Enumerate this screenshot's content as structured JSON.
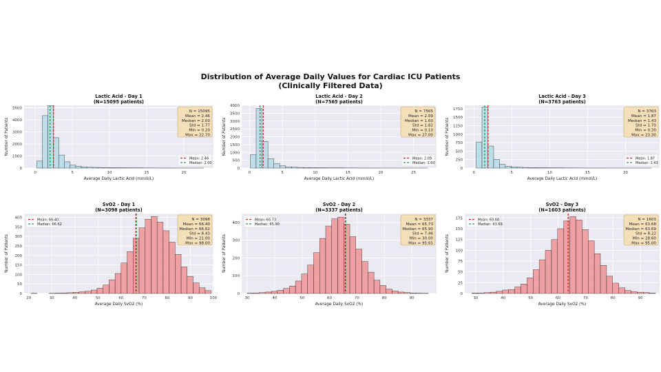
{
  "figure": {
    "title_line1": "Distribution of Average Daily Values for Cardiac ICU Patients",
    "title_line2": "(Clinically Filtered Data)"
  },
  "colors": {
    "plot_bg": "#eaeaf2",
    "grid": "#ffffff",
    "lactate_bar": "#add8e6",
    "svo2_bar": "#f08080",
    "bar_edge": "#222222",
    "mean_line": "#e0201b",
    "median_line": "#2e8b57",
    "stats_box": "#f5deb3",
    "stats_edge": "#c8a96e"
  },
  "chart_data": [
    {
      "type": "bar",
      "title": "Lactic Acid - Day 1",
      "subtitle": "(N=15095 patients)",
      "xlabel": "Average Daily Lactic Acid (mmol/L)",
      "ylabel": "Number of Patients",
      "xlim": [
        -1.5,
        24
      ],
      "ylim": [
        0,
        5200
      ],
      "xticks": [
        0,
        5,
        10,
        15,
        20
      ],
      "yticks": [
        0,
        1000,
        2000,
        3000,
        4000,
        5000
      ],
      "bin_start": 0.2,
      "bin_width": 0.75,
      "counts": [
        580,
        4350,
        5180,
        2520,
        1080,
        520,
        260,
        150,
        100,
        75,
        60,
        50,
        40,
        32,
        26,
        22,
        18,
        14,
        12,
        10,
        9,
        8,
        7,
        6,
        5,
        4,
        4,
        3,
        3,
        2
      ],
      "mean": 2.46,
      "median": 2.0,
      "legend_loc": "lower-right",
      "legend": [
        "Mean: 2.46",
        "Median: 2.00"
      ],
      "stats": [
        "N = 15095",
        "Mean = 2.46",
        "Median = 2.00",
        "Std = 1.77",
        "Min = 0.20",
        "Max = 22.70"
      ]
    },
    {
      "type": "bar",
      "title": "Lactic Acid - Day 2",
      "subtitle": "(N=7565 patients)",
      "xlabel": "Average Daily Lactic Acid (mmol/L)",
      "ylabel": "Number of Patients",
      "xlim": [
        -1.2,
        28.5
      ],
      "ylim": [
        0,
        4000
      ],
      "xticks": [
        0,
        5,
        10,
        15,
        20,
        25
      ],
      "yticks": [
        0,
        500,
        1000,
        1500,
        2000,
        2500,
        3000,
        3500,
        4000
      ],
      "bin_start": 0.1,
      "bin_width": 0.9,
      "counts": [
        850,
        3800,
        1700,
        600,
        280,
        140,
        80,
        55,
        40,
        32,
        25,
        20,
        16,
        13,
        11,
        9,
        8,
        7,
        6,
        5,
        4,
        4,
        3,
        3,
        2,
        2,
        2,
        1,
        1,
        1
      ],
      "mean": 2.09,
      "median": 1.6,
      "legend_loc": "lower-right",
      "legend": [
        "Mean: 2.09",
        "Median: 1.60"
      ],
      "stats": [
        "N = 7565",
        "Mean = 2.09",
        "Median = 1.60",
        "Std = 1.82",
        "Min = 0.10",
        "Max = 27.00"
      ]
    },
    {
      "type": "bar",
      "title": "Lactic Acid - Day 3",
      "subtitle": "(N=3763 patients)",
      "xlabel": "Average Daily Lactic Acid (mmol/L)",
      "ylabel": "Number of Patients",
      "xlim": [
        -1.2,
        24.5
      ],
      "ylim": [
        0,
        1850
      ],
      "xticks": [
        0,
        5,
        10,
        15,
        20
      ],
      "yticks": [
        0,
        250,
        500,
        750,
        1000,
        1250,
        1500,
        1750
      ],
      "bin_start": 0.3,
      "bin_width": 0.77,
      "counts": [
        770,
        1800,
        650,
        260,
        110,
        55,
        35,
        25,
        18,
        14,
        11,
        9,
        7,
        6,
        5,
        4,
        4,
        3,
        3,
        2,
        2,
        2,
        1,
        1,
        1,
        1,
        1,
        1,
        1,
        1
      ],
      "mean": 1.87,
      "median": 1.43,
      "legend_loc": "lower-right",
      "legend": [
        "Mean: 1.87",
        "Median: 1.43"
      ],
      "stats": [
        "N = 3763",
        "Mean = 1.87",
        "Median = 1.43",
        "Std = 1.70",
        "Min = 0.30",
        "Max = 23.30"
      ]
    },
    {
      "type": "bar",
      "title": "SvO2 - Day 1",
      "subtitle": "(N=3098 patients)",
      "xlabel": "Average Daily SvO2 (%)",
      "ylabel": "Number of Patients",
      "xlim": [
        18,
        100
      ],
      "ylim": [
        0,
        420
      ],
      "xticks": [
        20,
        30,
        40,
        50,
        60,
        70,
        80,
        90,
        100
      ],
      "yticks": [
        0,
        50,
        100,
        150,
        200,
        250,
        300,
        350,
        400
      ],
      "bin_start": 21.0,
      "bin_width": 2.6,
      "counts": [
        1,
        0,
        0,
        1,
        2,
        3,
        4,
        6,
        8,
        12,
        18,
        28,
        45,
        72,
        105,
        160,
        220,
        290,
        345,
        390,
        405,
        375,
        330,
        270,
        205,
        140,
        90,
        55,
        30,
        15
      ],
      "mean": 66.4,
      "median": 66.62,
      "legend_loc": "upper-left",
      "legend": [
        "Mean: 66.40",
        "Median: 66.62"
      ],
      "stats": [
        "N = 3098",
        "Mean = 66.40",
        "Median = 66.62",
        "Std = 8.43",
        "Min = 21.00",
        "Max = 98.00"
      ]
    },
    {
      "type": "bar",
      "title": "SvO2 - Day 2",
      "subtitle": "(N=3337 patients)",
      "xlabel": "Average Daily SvO2 (%)",
      "ylabel": "Number of Patients",
      "xlim": [
        28,
        99
      ],
      "ylim": [
        0,
        450
      ],
      "xticks": [
        30,
        40,
        50,
        60,
        70,
        80,
        90
      ],
      "yticks": [
        0,
        100,
        200,
        300,
        400
      ],
      "bin_start": 30.0,
      "bin_width": 2.2,
      "counts": [
        2,
        3,
        5,
        8,
        12,
        18,
        28,
        42,
        70,
        110,
        160,
        230,
        310,
        380,
        420,
        430,
        390,
        320,
        250,
        180,
        120,
        75,
        45,
        25,
        14,
        8,
        5,
        3,
        2,
        1
      ],
      "mean": 65.73,
      "median": 65.9,
      "legend_loc": "upper-left",
      "legend": [
        "Mean: 65.73",
        "Median: 65.90"
      ],
      "stats": [
        "N = 3337",
        "Mean = 65.73",
        "Median = 65.90",
        "Std = 7.46",
        "Min = 30.00",
        "Max = 95.65"
      ]
    },
    {
      "type": "bar",
      "title": "SvO2 - Day 3",
      "subtitle": "(N=1603 patients)",
      "xlabel": "Average Daily SvO2 (%)",
      "ylabel": "Number of Patients",
      "xlim": [
        26,
        97
      ],
      "ylim": [
        0,
        185
      ],
      "xticks": [
        30,
        40,
        50,
        60,
        70,
        80,
        90
      ],
      "yticks": [
        0,
        25,
        50,
        75,
        100,
        125,
        150,
        175
      ],
      "bin_start": 28.6,
      "bin_width": 2.23,
      "counts": [
        1,
        1,
        2,
        3,
        5,
        8,
        9,
        15,
        22,
        36,
        55,
        78,
        100,
        125,
        150,
        168,
        178,
        170,
        148,
        122,
        92,
        65,
        40,
        24,
        13,
        7,
        4,
        3,
        2,
        1
      ],
      "mean": 63.68,
      "median": 63.69,
      "legend_loc": "upper-left",
      "legend": [
        "Mean: 63.68",
        "Median: 63.69"
      ],
      "stats": [
        "N = 1603",
        "Mean = 63.68",
        "Median = 63.69",
        "Std = 8.22",
        "Min = 28.60",
        "Max = 95.00"
      ]
    }
  ]
}
